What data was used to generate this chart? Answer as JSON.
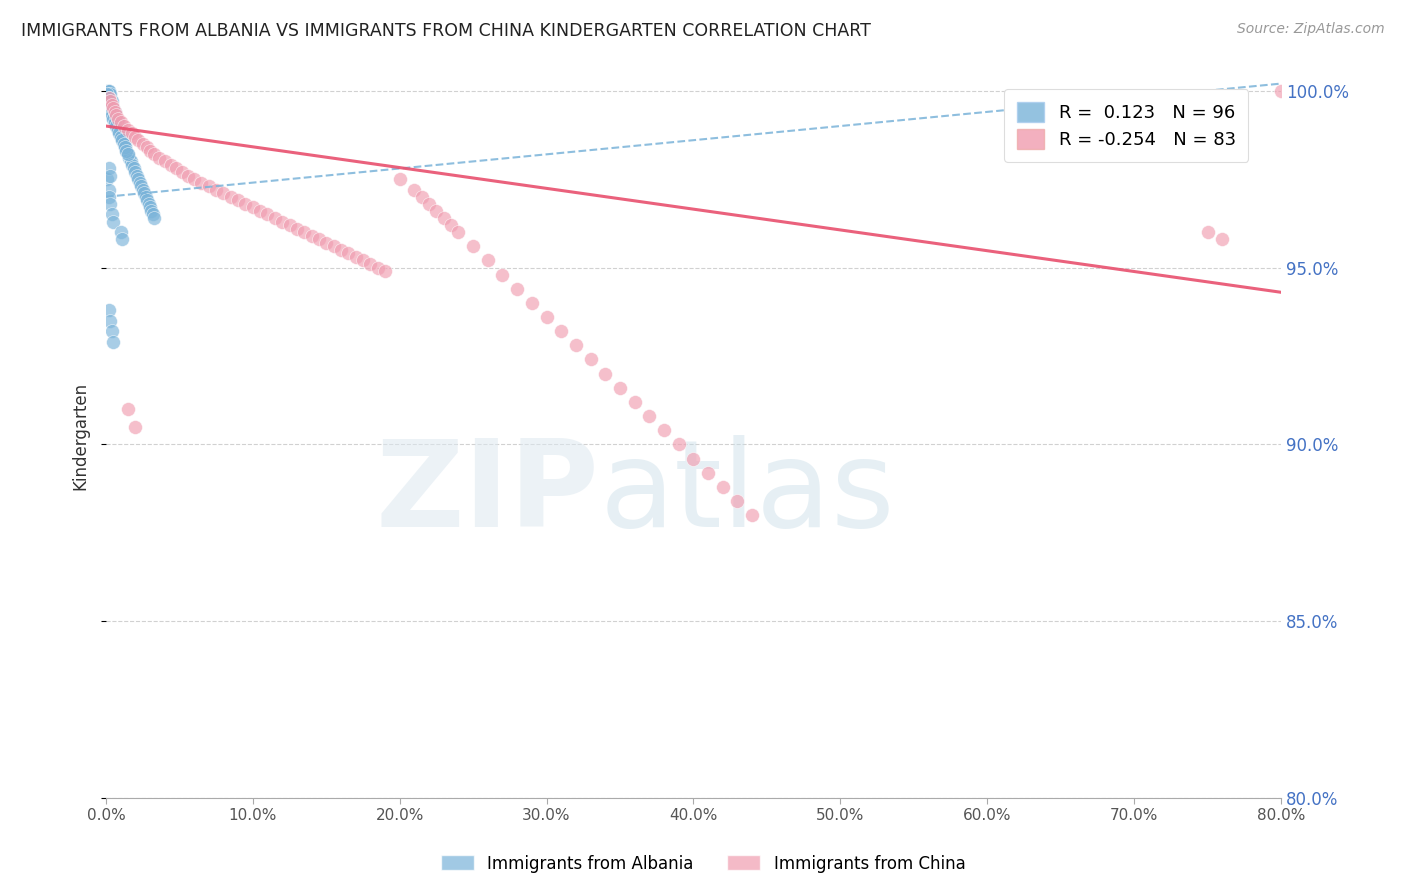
{
  "title": "IMMIGRANTS FROM ALBANIA VS IMMIGRANTS FROM CHINA KINDERGARTEN CORRELATION CHART",
  "source": "Source: ZipAtlas.com",
  "ylabel": "Kindergarten",
  "watermark": "ZIPatlas",
  "legend_albania": "Immigrants from Albania",
  "legend_china": "Immigrants from China",
  "r_albania": 0.123,
  "n_albania": 96,
  "r_china": -0.254,
  "n_china": 83,
  "albania_color": "#7ab3d9",
  "china_color": "#f09db0",
  "albania_trend_color": "#7ab3d9",
  "china_trend_color": "#e8506e",
  "xlim": [
    0.0,
    0.8
  ],
  "ylim": [
    0.8,
    1.005
  ],
  "ytick_labels": [
    1.0,
    0.95,
    0.9,
    0.85,
    0.8
  ],
  "xticks": [
    0.0,
    0.1,
    0.2,
    0.3,
    0.4,
    0.5,
    0.6,
    0.7,
    0.8
  ],
  "albania_x": [
    0.001,
    0.001,
    0.001,
    0.002,
    0.002,
    0.002,
    0.002,
    0.002,
    0.002,
    0.003,
    0.003,
    0.003,
    0.003,
    0.003,
    0.003,
    0.004,
    0.004,
    0.004,
    0.004,
    0.004,
    0.005,
    0.005,
    0.005,
    0.005,
    0.006,
    0.006,
    0.006,
    0.006,
    0.007,
    0.007,
    0.007,
    0.008,
    0.008,
    0.008,
    0.009,
    0.009,
    0.01,
    0.01,
    0.01,
    0.011,
    0.011,
    0.012,
    0.012,
    0.013,
    0.013,
    0.014,
    0.015,
    0.016,
    0.017,
    0.018,
    0.019,
    0.02,
    0.021,
    0.022,
    0.023,
    0.024,
    0.025,
    0.026,
    0.027,
    0.028,
    0.029,
    0.03,
    0.031,
    0.032,
    0.033,
    0.001,
    0.002,
    0.002,
    0.003,
    0.004,
    0.005,
    0.002,
    0.003,
    0.001,
    0.002,
    0.002,
    0.003,
    0.003,
    0.004,
    0.004,
    0.005,
    0.006,
    0.007,
    0.008,
    0.009,
    0.01,
    0.011,
    0.012,
    0.013,
    0.014,
    0.015,
    0.002,
    0.003,
    0.004,
    0.005,
    0.01,
    0.011
  ],
  "albania_y": [
    0.998,
    0.999,
    1.0,
    0.996,
    0.997,
    0.998,
    0.999,
    1.0,
    1.0,
    0.994,
    0.995,
    0.996,
    0.997,
    0.998,
    0.999,
    0.993,
    0.994,
    0.995,
    0.996,
    0.997,
    0.992,
    0.993,
    0.994,
    0.995,
    0.991,
    0.992,
    0.993,
    0.994,
    0.99,
    0.991,
    0.992,
    0.989,
    0.99,
    0.991,
    0.988,
    0.989,
    0.987,
    0.988,
    0.989,
    0.986,
    0.987,
    0.985,
    0.986,
    0.984,
    0.985,
    0.983,
    0.982,
    0.981,
    0.98,
    0.979,
    0.978,
    0.977,
    0.976,
    0.975,
    0.974,
    0.973,
    0.972,
    0.971,
    0.97,
    0.969,
    0.968,
    0.967,
    0.966,
    0.965,
    0.964,
    0.975,
    0.972,
    0.97,
    0.968,
    0.965,
    0.963,
    0.978,
    0.976,
    0.999,
    0.998,
    0.997,
    0.996,
    0.995,
    0.994,
    0.993,
    0.992,
    0.991,
    0.99,
    0.989,
    0.988,
    0.987,
    0.986,
    0.985,
    0.984,
    0.983,
    0.982,
    0.938,
    0.935,
    0.932,
    0.929,
    0.96,
    0.958
  ],
  "china_x": [
    0.002,
    0.003,
    0.004,
    0.005,
    0.006,
    0.007,
    0.008,
    0.01,
    0.012,
    0.015,
    0.018,
    0.02,
    0.022,
    0.025,
    0.028,
    0.03,
    0.033,
    0.036,
    0.04,
    0.044,
    0.048,
    0.052,
    0.056,
    0.06,
    0.065,
    0.07,
    0.075,
    0.08,
    0.085,
    0.09,
    0.095,
    0.1,
    0.105,
    0.11,
    0.115,
    0.12,
    0.125,
    0.13,
    0.135,
    0.14,
    0.145,
    0.15,
    0.155,
    0.16,
    0.165,
    0.17,
    0.175,
    0.18,
    0.185,
    0.19,
    0.2,
    0.21,
    0.215,
    0.22,
    0.225,
    0.23,
    0.235,
    0.24,
    0.25,
    0.26,
    0.27,
    0.28,
    0.29,
    0.3,
    0.31,
    0.32,
    0.33,
    0.34,
    0.35,
    0.36,
    0.37,
    0.38,
    0.39,
    0.4,
    0.41,
    0.42,
    0.43,
    0.44,
    0.75,
    0.76,
    0.8,
    0.015,
    0.02
  ],
  "china_y": [
    0.998,
    0.997,
    0.996,
    0.995,
    0.994,
    0.993,
    0.992,
    0.991,
    0.99,
    0.989,
    0.988,
    0.987,
    0.986,
    0.985,
    0.984,
    0.983,
    0.982,
    0.981,
    0.98,
    0.979,
    0.978,
    0.977,
    0.976,
    0.975,
    0.974,
    0.973,
    0.972,
    0.971,
    0.97,
    0.969,
    0.968,
    0.967,
    0.966,
    0.965,
    0.964,
    0.963,
    0.962,
    0.961,
    0.96,
    0.959,
    0.958,
    0.957,
    0.956,
    0.955,
    0.954,
    0.953,
    0.952,
    0.951,
    0.95,
    0.949,
    0.975,
    0.972,
    0.97,
    0.968,
    0.966,
    0.964,
    0.962,
    0.96,
    0.956,
    0.952,
    0.948,
    0.944,
    0.94,
    0.936,
    0.932,
    0.928,
    0.924,
    0.92,
    0.916,
    0.912,
    0.908,
    0.904,
    0.9,
    0.896,
    0.892,
    0.888,
    0.884,
    0.88,
    0.96,
    0.958,
    1.0,
    0.91,
    0.905
  ]
}
